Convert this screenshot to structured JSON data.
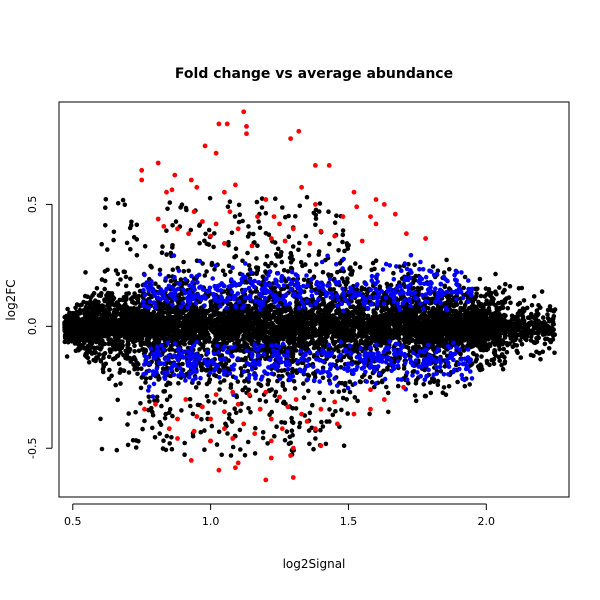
{
  "chart_data": {
    "type": "scatter",
    "title": "Fold change vs average abundance",
    "xlabel": "log2Signal",
    "ylabel": "log2FC",
    "xlim": [
      0.45,
      2.3
    ],
    "ylim": [
      -0.7,
      0.92
    ],
    "x_ticks": [
      0.5,
      1.0,
      1.5,
      2.0
    ],
    "x_tick_labels": [
      "0.5",
      "1.0",
      "1.5",
      "2.0"
    ],
    "y_ticks": [
      -0.5,
      0.0,
      0.5
    ],
    "y_tick_labels": [
      "-0.5",
      "0.0",
      "0.5"
    ],
    "grid": false,
    "legend": "none",
    "colors": {
      "non_significant": "#000000",
      "moderate": "#0000ff",
      "strong": "#ff0000"
    },
    "series": [
      {
        "color": "#ff0000",
        "points": [
          [
            1.12,
            0.88
          ],
          [
            1.03,
            0.83
          ],
          [
            1.06,
            0.83
          ],
          [
            1.13,
            0.82
          ],
          [
            1.13,
            0.79
          ],
          [
            1.32,
            0.8
          ],
          [
            1.29,
            0.77
          ],
          [
            0.98,
            0.74
          ],
          [
            1.02,
            0.71
          ],
          [
            1.38,
            0.66
          ],
          [
            1.43,
            0.66
          ],
          [
            0.81,
            0.67
          ],
          [
            0.75,
            0.64
          ],
          [
            0.75,
            0.6
          ],
          [
            0.87,
            0.62
          ],
          [
            0.93,
            0.6
          ],
          [
            0.95,
            0.57
          ],
          [
            1.09,
            0.58
          ],
          [
            1.33,
            0.57
          ],
          [
            0.86,
            0.56
          ],
          [
            0.84,
            0.55
          ],
          [
            1.05,
            0.55
          ],
          [
            1.52,
            0.55
          ],
          [
            1.2,
            0.52
          ],
          [
            1.38,
            0.5
          ],
          [
            1.6,
            0.52
          ],
          [
            1.63,
            0.5
          ],
          [
            1.53,
            0.49
          ],
          [
            1.67,
            0.46
          ],
          [
            1.07,
            0.47
          ],
          [
            0.94,
            0.47
          ],
          [
            1.17,
            0.45
          ],
          [
            1.23,
            0.45
          ],
          [
            0.81,
            0.44
          ],
          [
            1.48,
            0.45
          ],
          [
            1.58,
            0.45
          ],
          [
            1.6,
            0.42
          ],
          [
            0.97,
            0.43
          ],
          [
            1.02,
            0.42
          ],
          [
            1.25,
            0.42
          ],
          [
            0.83,
            0.41
          ],
          [
            0.88,
            0.4
          ],
          [
            1.1,
            0.4
          ],
          [
            1.3,
            0.4
          ],
          [
            1.4,
            0.39
          ],
          [
            1.71,
            0.38
          ],
          [
            1.78,
            0.36
          ],
          [
            1.45,
            0.37
          ],
          [
            0.92,
            0.38
          ],
          [
            1.0,
            0.37
          ],
          [
            1.22,
            0.36
          ],
          [
            1.27,
            0.35
          ],
          [
            1.36,
            0.34
          ],
          [
            1.05,
            0.34
          ],
          [
            1.15,
            0.33
          ],
          [
            1.55,
            0.35
          ],
          [
            0.8,
            -0.32
          ],
          [
            0.76,
            -0.34
          ],
          [
            0.91,
            -0.3
          ],
          [
            1.02,
            -0.28
          ],
          [
            1.08,
            -0.27
          ],
          [
            1.14,
            -0.28
          ],
          [
            1.2,
            -0.27
          ],
          [
            1.25,
            -0.29
          ],
          [
            1.31,
            -0.3
          ],
          [
            0.97,
            -0.33
          ],
          [
            1.05,
            -0.35
          ],
          [
            1.18,
            -0.34
          ],
          [
            1.28,
            -0.33
          ],
          [
            1.4,
            -0.34
          ],
          [
            1.52,
            -0.36
          ],
          [
            1.58,
            -0.34
          ],
          [
            0.88,
            -0.38
          ],
          [
            1.0,
            -0.38
          ],
          [
            1.12,
            -0.4
          ],
          [
            1.22,
            -0.38
          ],
          [
            1.35,
            -0.39
          ],
          [
            1.46,
            -0.4
          ],
          [
            0.85,
            -0.42
          ],
          [
            0.94,
            -0.43
          ],
          [
            1.05,
            -0.42
          ],
          [
            1.16,
            -0.44
          ],
          [
            1.26,
            -0.42
          ],
          [
            1.38,
            -0.42
          ],
          [
            0.88,
            -0.46
          ],
          [
            1.0,
            -0.47
          ],
          [
            1.08,
            -0.46
          ],
          [
            1.22,
            -0.47
          ],
          [
            1.3,
            -0.5
          ],
          [
            0.93,
            -0.55
          ],
          [
            1.1,
            -0.56
          ],
          [
            1.22,
            -0.54
          ],
          [
            1.03,
            -0.59
          ],
          [
            1.09,
            -0.58
          ],
          [
            1.2,
            -0.63
          ],
          [
            1.3,
            -0.62
          ],
          [
            1.29,
            -0.53
          ],
          [
            1.4,
            -0.49
          ],
          [
            0.95,
            -0.37
          ],
          [
            1.1,
            -0.32
          ],
          [
            1.33,
            -0.36
          ],
          [
            1.45,
            -0.31
          ],
          [
            1.63,
            -0.3
          ],
          [
            1.58,
            -0.26
          ],
          [
            1.7,
            -0.25
          ]
        ]
      }
    ]
  }
}
